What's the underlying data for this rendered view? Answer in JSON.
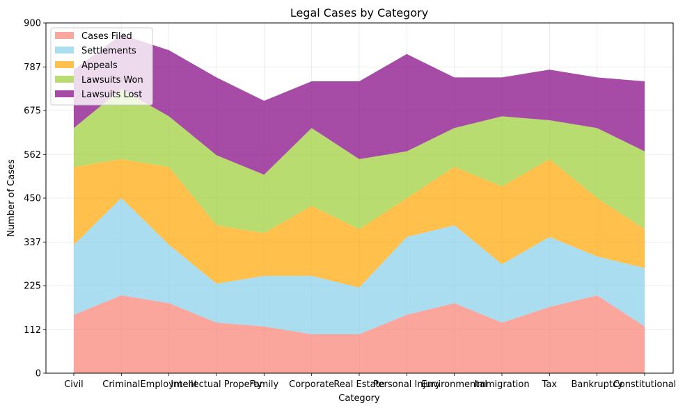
{
  "chart_data": {
    "type": "area",
    "stacked": true,
    "title": "Legal Cases by Category",
    "xlabel": "Category",
    "ylabel": "Number of Cases",
    "categories": [
      "Civil",
      "Criminal",
      "Employment",
      "Intellectual Property",
      "Family",
      "Corporate",
      "Real Estate",
      "Personal Injury",
      "Environmental",
      "Immigration",
      "Tax",
      "Bankruptcy",
      "Constitutional"
    ],
    "ylim": [
      0,
      900
    ],
    "yticks": [
      0,
      112,
      225,
      337,
      450,
      562,
      675,
      787,
      900
    ],
    "grid": true,
    "legend_position": "top-left",
    "series": [
      {
        "name": "Cases Filed",
        "color": "#FA8072",
        "values": [
          150,
          200,
          180,
          130,
          120,
          100,
          100,
          150,
          180,
          130,
          170,
          200,
          120
        ]
      },
      {
        "name": "Settlements",
        "color": "#87CEEB",
        "values": [
          180,
          250,
          150,
          100,
          130,
          150,
          120,
          200,
          200,
          150,
          180,
          100,
          150
        ]
      },
      {
        "name": "Appeals",
        "color": "#FFA500",
        "values": [
          200,
          100,
          200,
          150,
          110,
          180,
          150,
          100,
          150,
          200,
          200,
          150,
          100
        ]
      },
      {
        "name": "Lawsuits Won",
        "color": "#9ACD32",
        "values": [
          100,
          180,
          130,
          180,
          150,
          200,
          180,
          120,
          100,
          180,
          100,
          180,
          200
        ]
      },
      {
        "name": "Lawsuits Lost",
        "color": "#800080",
        "values": [
          150,
          140,
          170,
          200,
          190,
          120,
          200,
          250,
          130,
          100,
          130,
          130,
          180
        ]
      }
    ]
  }
}
